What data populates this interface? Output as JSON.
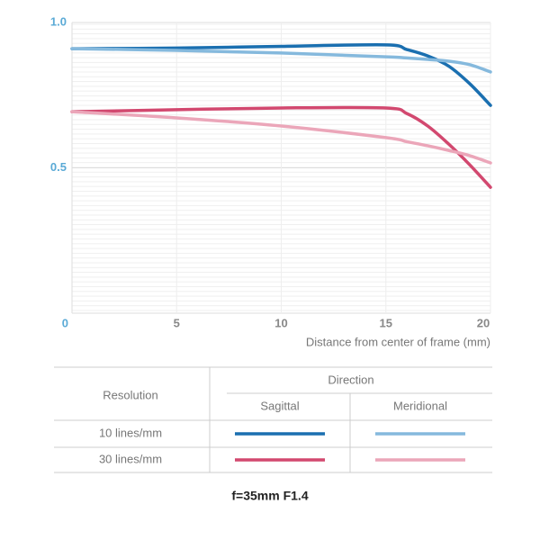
{
  "chart_data": {
    "type": "line",
    "x": [
      0,
      5,
      10,
      15,
      16,
      17,
      18,
      19,
      20
    ],
    "xlim": [
      0,
      20
    ],
    "xticks": [
      5,
      10,
      15,
      20
    ],
    "ylim": [
      0,
      1
    ],
    "yticks": [
      0,
      0.5,
      {
        "value": 1,
        "label": "1.0"
      }
    ],
    "x_label": "Distance from center of frame (mm)",
    "series": [
      {
        "color": "#1a6fb0",
        "values": [
          0.91,
          0.912,
          0.918,
          0.923,
          0.907,
          0.885,
          0.85,
          0.79,
          0.715
        ]
      },
      {
        "color": "#85b9dd",
        "values": [
          0.91,
          0.904,
          0.895,
          0.882,
          0.878,
          0.873,
          0.867,
          0.855,
          0.83
        ]
      },
      {
        "color": "#d2486f",
        "values": [
          0.693,
          0.7,
          0.706,
          0.706,
          0.687,
          0.644,
          0.582,
          0.511,
          0.433
        ]
      },
      {
        "color": "#eba6b9",
        "values": [
          0.693,
          0.672,
          0.644,
          0.604,
          0.59,
          0.576,
          0.56,
          0.542,
          0.517
        ]
      }
    ],
    "legend": {
      "row_header": "Resolution",
      "column_header": "Direction",
      "columns": [
        "Sagittal",
        "Meridional"
      ],
      "rows": [
        "10 lines/mm",
        "30 lines/mm"
      ]
    },
    "caption": "f=35mm F1.4"
  }
}
